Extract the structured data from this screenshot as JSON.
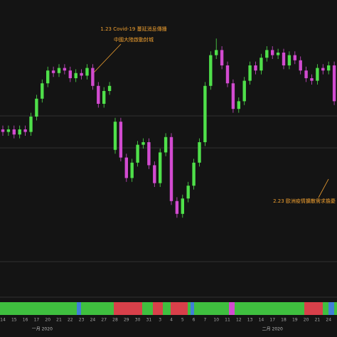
{
  "chart_data": {
    "type": "candlestick",
    "annotations": [
      {
        "lines": [
          "1.23 Covid-19 蔓延消息傳播",
          "中國大陸啟動封城"
        ]
      },
      {
        "lines": [
          "2.23 歐洲疫情擴散需求擔憂"
        ]
      }
    ],
    "categories": [
      "14",
      null,
      "15",
      null,
      "16",
      null,
      "17",
      null,
      "20",
      null,
      "21",
      null,
      "22",
      null,
      "23",
      null,
      "24",
      null,
      "27",
      null,
      "28",
      null,
      "29",
      null,
      "30",
      null,
      "31",
      null,
      "3",
      null,
      "4",
      null,
      "5",
      null,
      "6",
      null,
      "7",
      null,
      "10",
      null,
      "11",
      null,
      "12",
      null,
      "13",
      null,
      "14",
      null,
      "17",
      null,
      "18",
      null,
      "19",
      null,
      "20",
      null,
      "21",
      null,
      "24",
      null
    ],
    "months": [
      null,
      null,
      null,
      null,
      null,
      null,
      null,
      "一月 2020",
      null,
      null,
      null,
      null,
      null,
      null,
      null,
      null,
      null,
      null,
      null,
      null,
      null,
      null,
      null,
      null,
      null,
      null,
      null,
      null,
      null,
      null,
      null,
      null,
      null,
      null,
      null,
      null,
      null,
      null,
      null,
      null,
      null,
      null,
      null,
      null,
      null,
      null,
      null,
      null,
      "二月 2020",
      null,
      null,
      null,
      null,
      null,
      null,
      null,
      null,
      null,
      null,
      null
    ],
    "open": [
      55,
      54,
      55,
      53,
      55,
      54,
      60,
      67,
      73,
      78,
      77,
      79,
      78,
      75,
      77,
      76,
      79,
      72,
      65,
      70,
      47,
      58,
      44,
      36,
      42,
      49,
      50,
      41,
      34,
      46,
      52,
      27,
      22,
      28,
      33,
      42,
      50,
      72,
      84,
      86,
      80,
      73,
      63,
      66,
      74,
      80,
      78,
      83,
      86,
      84,
      85,
      80,
      84,
      82,
      78,
      75,
      74,
      79,
      78,
      80
    ],
    "high": [
      56.5,
      56.5,
      56.5,
      56.5,
      56.5,
      61.5,
      68.5,
      74.5,
      79.5,
      79.5,
      80.5,
      80.5,
      79.5,
      78.5,
      78.5,
      80.5,
      80.5,
      73.5,
      71.5,
      73.5,
      59.5,
      59.5,
      45.5,
      43.5,
      50.5,
      51.5,
      51.5,
      42.5,
      47.5,
      53.5,
      53.5,
      28.5,
      29.5,
      34.5,
      43.5,
      51.5,
      73.5,
      85.5,
      90.5,
      87.5,
      81.5,
      74.5,
      67.5,
      75.5,
      81.5,
      81.5,
      84.5,
      87.5,
      87.5,
      86.5,
      86.5,
      85.5,
      85.5,
      83.5,
      79.5,
      76.5,
      80.5,
      80.5,
      81.5,
      81.5
    ],
    "low": [
      52.5,
      52.5,
      51.5,
      51.5,
      52.5,
      52.5,
      58.5,
      65.5,
      71.5,
      75.5,
      75.5,
      76.5,
      73.5,
      73.5,
      74.5,
      74.5,
      70.5,
      63.5,
      63.5,
      68.5,
      45.5,
      42.5,
      34.5,
      34.5,
      40.5,
      47.5,
      39.5,
      32.5,
      32.5,
      44.5,
      25.5,
      20.5,
      20.5,
      26.5,
      31.5,
      40.5,
      48.5,
      70.5,
      82.5,
      78.5,
      71.5,
      61.5,
      61.5,
      64.5,
      72.5,
      76.5,
      76.5,
      81.5,
      82.5,
      82.5,
      78.5,
      78.5,
      80.5,
      76.5,
      73.5,
      72.5,
      72.5,
      76.5,
      76.5,
      64.5
    ],
    "close": [
      54,
      55,
      53,
      55,
      54,
      60,
      67,
      73,
      78,
      77,
      79,
      78,
      75,
      77,
      76,
      79,
      72,
      65,
      70,
      72,
      58,
      44,
      36,
      42,
      49,
      50,
      41,
      34,
      46,
      52,
      27,
      22,
      28,
      33,
      42,
      50,
      72,
      84,
      86,
      80,
      73,
      63,
      66,
      74,
      80,
      78,
      83,
      86,
      84,
      85,
      80,
      84,
      82,
      78,
      75,
      74,
      79,
      78,
      80,
      66
    ],
    "up_color": "#4fe04a",
    "down_color": "#d24bd0",
    "ylim": [
      0,
      100
    ]
  }
}
